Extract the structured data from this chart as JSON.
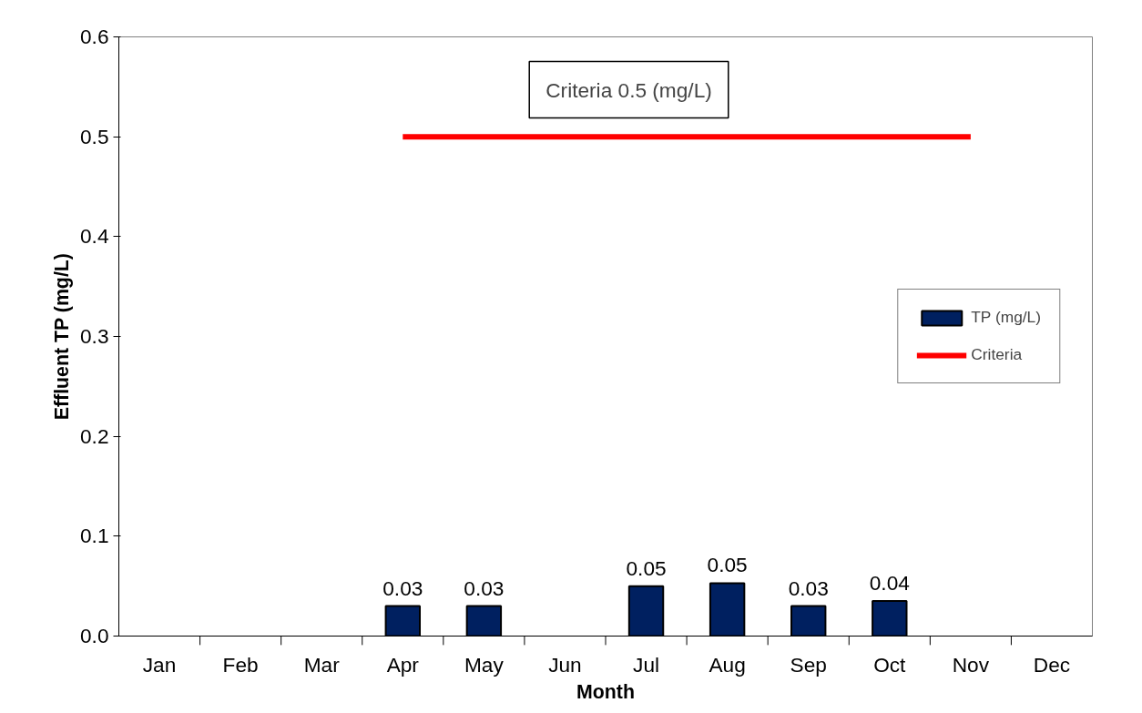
{
  "chart_data": {
    "type": "bar",
    "xlabel": "Month",
    "ylabel": "Effluent TP (mg/L)",
    "categories": [
      "Jan",
      "Feb",
      "Mar",
      "Apr",
      "May",
      "Jun",
      "Jul",
      "Aug",
      "Sep",
      "Oct",
      "Nov",
      "Dec"
    ],
    "series": [
      {
        "name": "TP (mg/L)",
        "color": "#002060",
        "values": [
          null,
          null,
          null,
          0.03,
          0.03,
          null,
          0.05,
          0.053,
          0.03,
          0.035,
          null,
          null
        ],
        "value_labels": [
          null,
          null,
          null,
          "0.03",
          "0.03",
          null,
          "0.05",
          "0.05",
          "0.03",
          "0.04",
          null,
          null
        ]
      },
      {
        "name": "Criteria",
        "type": "line",
        "color": "#ff0000",
        "values": [
          null,
          null,
          null,
          0.5,
          0.5,
          0.5,
          0.5,
          0.5,
          0.5,
          0.5,
          0.5,
          null
        ]
      }
    ],
    "annotations": [
      "Criteria 0.5 (mg/L)"
    ],
    "ylim": [
      0,
      0.6
    ],
    "yticks": [
      {
        "value": 0,
        "label": "0.0"
      },
      0.1,
      0.2,
      0.3,
      0.4,
      0.5,
      0.6
    ],
    "legend": "right",
    "grid": false
  }
}
